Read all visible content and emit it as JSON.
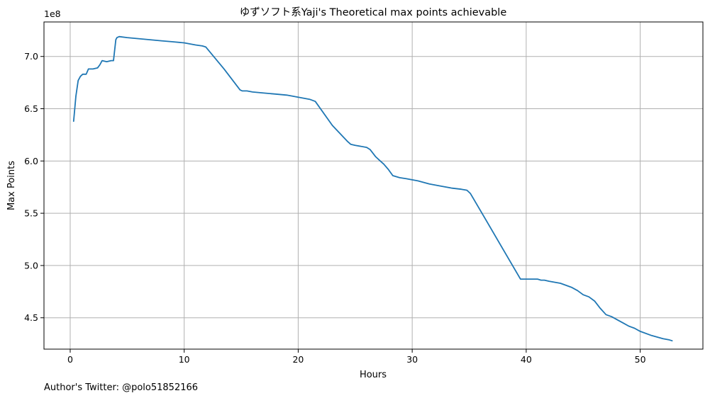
{
  "chart_data": {
    "type": "line",
    "title": "ゆずソフト系Yaji's Theoretical max points achievable",
    "xlabel": "Hours",
    "ylabel": "Max Points",
    "y_multiplier_label": "1e8",
    "xlim": [
      -2.3,
      55.5
    ],
    "ylim": [
      4.2,
      7.33
    ],
    "x_ticks": [
      0,
      10,
      20,
      30,
      40,
      50
    ],
    "x_tick_labels": [
      "0",
      "10",
      "20",
      "30",
      "40",
      "50"
    ],
    "y_ticks": [
      4.5,
      5.0,
      5.5,
      6.0,
      6.5,
      7.0
    ],
    "y_tick_labels": [
      "4.5",
      "5.0",
      "5.5",
      "6.0",
      "6.5",
      "7.0"
    ],
    "grid": true,
    "line_color": "#1f77b4",
    "series": [
      {
        "x": [
          0.3,
          0.5,
          0.7,
          0.9,
          1.1,
          1.4,
          1.6,
          2.0,
          2.4,
          2.6,
          2.8,
          3.2,
          3.6,
          3.8,
          4.0,
          4.1,
          4.3,
          5.0,
          6.0,
          7.0,
          8.0,
          9.0,
          10.0,
          11.0,
          11.6,
          11.9,
          13.5,
          14.9,
          15.1,
          15.5,
          16.0,
          17.0,
          18.0,
          19.0,
          19.5,
          20.0,
          21.0,
          21.5,
          23.0,
          24.3,
          24.6,
          25.0,
          26.0,
          26.3,
          26.8,
          27.2,
          27.5,
          27.9,
          28.3,
          28.9,
          29.5,
          30.5,
          31.5,
          32.5,
          33.5,
          34.3,
          34.8,
          35.1,
          36.5,
          38.0,
          39.5,
          41.0,
          41.3,
          41.6,
          42.0,
          43.0,
          44.0,
          44.5,
          45.0,
          45.5,
          46.0,
          46.5,
          47.0,
          47.5,
          48.0,
          48.5,
          49.0,
          49.5,
          50.0,
          51.0,
          52.0,
          52.5,
          52.8
        ],
        "y": [
          6.38,
          6.62,
          6.77,
          6.81,
          6.83,
          6.83,
          6.88,
          6.88,
          6.89,
          6.92,
          6.96,
          6.95,
          6.96,
          6.96,
          7.16,
          7.18,
          7.19,
          7.18,
          7.17,
          7.16,
          7.15,
          7.14,
          7.13,
          7.11,
          7.1,
          7.09,
          6.88,
          6.68,
          6.67,
          6.67,
          6.66,
          6.65,
          6.64,
          6.63,
          6.62,
          6.61,
          6.59,
          6.57,
          6.34,
          6.19,
          6.16,
          6.15,
          6.13,
          6.11,
          6.04,
          6.0,
          5.97,
          5.92,
          5.86,
          5.84,
          5.83,
          5.81,
          5.78,
          5.76,
          5.74,
          5.73,
          5.72,
          5.69,
          5.43,
          5.15,
          4.87,
          4.87,
          4.86,
          4.86,
          4.85,
          4.83,
          4.79,
          4.76,
          4.72,
          4.7,
          4.66,
          4.59,
          4.53,
          4.51,
          4.48,
          4.45,
          4.42,
          4.4,
          4.37,
          4.33,
          4.3,
          4.29,
          4.28
        ]
      }
    ]
  },
  "footnote": "Author's Twitter: @polo51852166"
}
